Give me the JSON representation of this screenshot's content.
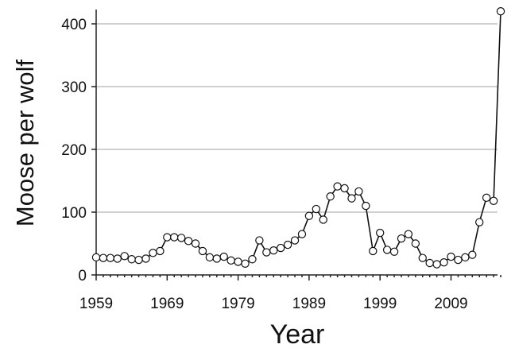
{
  "chart_data": {
    "type": "line",
    "title": "",
    "xlabel": "Year",
    "ylabel": "Moose per wolf",
    "xlim": [
      1959,
      2016
    ],
    "ylim": [
      0,
      420
    ],
    "x_ticks": [
      1959,
      1969,
      1979,
      1989,
      1999,
      2009
    ],
    "y_ticks": [
      0,
      100,
      200,
      300,
      400
    ],
    "grid": "horizontal",
    "legend": "none",
    "series": [
      {
        "x": [
          1959,
          1960,
          1961,
          1962,
          1963,
          1964,
          1965,
          1966,
          1967,
          1968,
          1969,
          1970,
          1971,
          1972,
          1973,
          1974,
          1975,
          1976,
          1977,
          1978,
          1979,
          1980,
          1981,
          1982,
          1983,
          1984,
          1985,
          1986,
          1987,
          1988,
          1989,
          1990,
          1991,
          1992,
          1993,
          1994,
          1995,
          1996,
          1997,
          1998,
          1999,
          2000,
          2001,
          2002,
          2003,
          2004,
          2005,
          2006,
          2007,
          2008,
          2009,
          2010,
          2011,
          2012,
          2013,
          2014,
          2015,
          2016
        ],
        "values": [
          28,
          27,
          27,
          26,
          30,
          25,
          24,
          26,
          35,
          38,
          60,
          60,
          59,
          54,
          50,
          38,
          28,
          26,
          29,
          23,
          21,
          18,
          25,
          55,
          36,
          39,
          43,
          48,
          55,
          65,
          94,
          105,
          88,
          125,
          141,
          138,
          122,
          133,
          110,
          38,
          67,
          40,
          37,
          58,
          65,
          50,
          27,
          19,
          17,
          20,
          29,
          24,
          28,
          32,
          84,
          123,
          118,
          420
        ]
      }
    ]
  }
}
